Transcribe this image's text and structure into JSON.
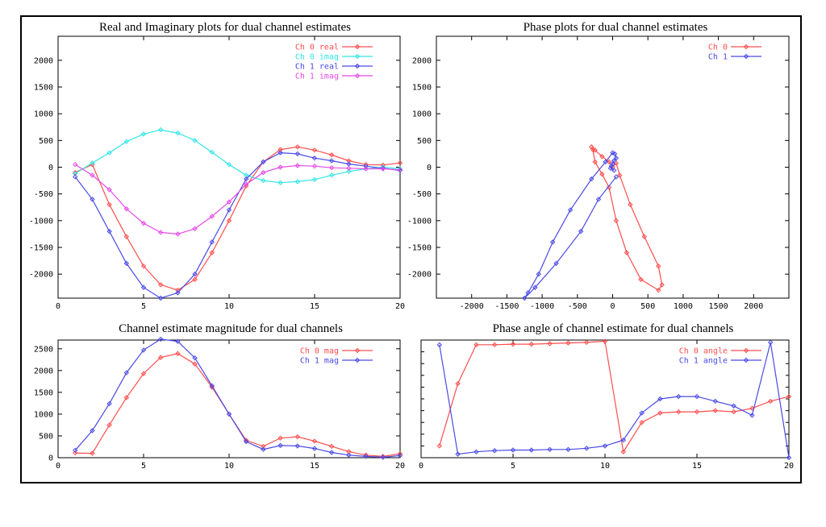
{
  "chart_data": [
    {
      "type": "line",
      "title": "Real and Imaginary plots for dual channel estimates",
      "xlim": [
        0,
        20
      ],
      "ylim": [
        -2450,
        2450
      ],
      "xticks": [
        0,
        5,
        10,
        15,
        20
      ],
      "yticks": [
        -2000,
        -1500,
        -1000,
        -500,
        0,
        500,
        1000,
        1500,
        2000
      ],
      "legend": "top-right",
      "series": [
        {
          "name": "Ch 0 real",
          "color": "#ff4d4d",
          "points": [
            [
              1,
              -100
            ],
            [
              2,
              50
            ],
            [
              3,
              -700
            ],
            [
              4,
              -1300
            ],
            [
              5,
              -1850
            ],
            [
              6,
              -2200
            ],
            [
              7,
              -2300
            ],
            [
              8,
              -2100
            ],
            [
              9,
              -1600
            ],
            [
              10,
              -1000
            ],
            [
              11,
              -350
            ],
            [
              12,
              100
            ],
            [
              13,
              330
            ],
            [
              14,
              380
            ],
            [
              15,
              320
            ],
            [
              16,
              230
            ],
            [
              17,
              120
            ],
            [
              18,
              50
            ],
            [
              19,
              40
            ],
            [
              20,
              80
            ]
          ]
        },
        {
          "name": "Ch 0 imag",
          "color": "#33e6e6",
          "points": [
            [
              1,
              -120
            ],
            [
              2,
              80
            ],
            [
              3,
              270
            ],
            [
              4,
              480
            ],
            [
              5,
              620
            ],
            [
              6,
              700
            ],
            [
              7,
              640
            ],
            [
              8,
              500
            ],
            [
              9,
              280
            ],
            [
              10,
              50
            ],
            [
              11,
              -150
            ],
            [
              12,
              -250
            ],
            [
              13,
              -290
            ],
            [
              14,
              -270
            ],
            [
              15,
              -230
            ],
            [
              16,
              -150
            ],
            [
              17,
              -80
            ],
            [
              18,
              -30
            ],
            [
              19,
              0
            ],
            [
              20,
              -30
            ]
          ]
        },
        {
          "name": "Ch 1 real",
          "color": "#4a4ae6",
          "points": [
            [
              1,
              -180
            ],
            [
              2,
              -600
            ],
            [
              3,
              -1200
            ],
            [
              4,
              -1800
            ],
            [
              5,
              -2250
            ],
            [
              6,
              -2450
            ],
            [
              7,
              -2350
            ],
            [
              8,
              -2000
            ],
            [
              9,
              -1400
            ],
            [
              10,
              -800
            ],
            [
              11,
              -220
            ],
            [
              12,
              100
            ],
            [
              13,
              270
            ],
            [
              14,
              250
            ],
            [
              15,
              170
            ],
            [
              16,
              120
            ],
            [
              17,
              60
            ],
            [
              18,
              20
            ],
            [
              19,
              -20
            ],
            [
              20,
              -60
            ]
          ]
        },
        {
          "name": "Ch 1 imag",
          "color": "#e64ae6",
          "points": [
            [
              1,
              50
            ],
            [
              2,
              -150
            ],
            [
              3,
              -420
            ],
            [
              4,
              -780
            ],
            [
              5,
              -1050
            ],
            [
              6,
              -1220
            ],
            [
              7,
              -1250
            ],
            [
              8,
              -1150
            ],
            [
              9,
              -920
            ],
            [
              10,
              -650
            ],
            [
              11,
              -320
            ],
            [
              12,
              -100
            ],
            [
              13,
              0
            ],
            [
              14,
              30
            ],
            [
              15,
              20
            ],
            [
              16,
              -10
            ],
            [
              17,
              -20
            ],
            [
              18,
              -30
            ],
            [
              19,
              -30
            ],
            [
              20,
              -50
            ]
          ]
        }
      ]
    },
    {
      "type": "line",
      "title": "Phase plots for dual channel estimates",
      "xlim": [
        -2500,
        2500
      ],
      "ylim": [
        -2450,
        2450
      ],
      "xticks": [
        -2000,
        -1500,
        -1000,
        -500,
        0,
        500,
        1000,
        1500,
        2000
      ],
      "yticks": [
        -2000,
        -1500,
        -1000,
        -500,
        0,
        500,
        1000,
        1500,
        2000
      ],
      "legend": "top-right",
      "series": [
        {
          "name": "Ch 0",
          "color": "#ff4d4d",
          "points": [
            [
              -300,
              380
            ],
            [
              -250,
              320
            ],
            [
              -150,
              200
            ],
            [
              -50,
              100
            ],
            [
              0,
              0
            ],
            [
              50,
              80
            ],
            [
              100,
              -150
            ],
            [
              250,
              -700
            ],
            [
              450,
              -1300
            ],
            [
              650,
              -1850
            ],
            [
              700,
              -2200
            ],
            [
              650,
              -2300
            ],
            [
              400,
              -2100
            ],
            [
              200,
              -1600
            ],
            [
              50,
              -1000
            ],
            [
              -50,
              -380
            ],
            [
              -150,
              -130
            ],
            [
              -250,
              100
            ],
            [
              -280,
              330
            ],
            [
              -300,
              380
            ]
          ]
        },
        {
          "name": "Ch 1",
          "color": "#4a4ae6",
          "points": [
            [
              50,
              -180
            ],
            [
              -200,
              -600
            ],
            [
              -450,
              -1200
            ],
            [
              -800,
              -1800
            ],
            [
              -1100,
              -2250
            ],
            [
              -1250,
              -2450
            ],
            [
              -1200,
              -2350
            ],
            [
              -1050,
              -2000
            ],
            [
              -850,
              -1400
            ],
            [
              -600,
              -800
            ],
            [
              -300,
              -220
            ],
            [
              -100,
              100
            ],
            [
              0,
              270
            ],
            [
              30,
              250
            ],
            [
              50,
              170
            ],
            [
              20,
              120
            ],
            [
              0,
              60
            ],
            [
              -20,
              20
            ],
            [
              -30,
              -20
            ],
            [
              20,
              -60
            ]
          ]
        }
      ]
    },
    {
      "type": "line",
      "title": "Channel estimate magnitude for dual channels",
      "xlim": [
        0,
        20
      ],
      "ylim": [
        0,
        2700
      ],
      "xticks": [
        0,
        5,
        10,
        15,
        20
      ],
      "yticks": [
        0,
        500,
        1000,
        1500,
        2000,
        2500
      ],
      "legend": "top-right",
      "series": [
        {
          "name": "Ch 0 mag",
          "color": "#ff4d4d",
          "points": [
            [
              1,
              110
            ],
            [
              2,
              100
            ],
            [
              3,
              750
            ],
            [
              4,
              1380
            ],
            [
              5,
              1930
            ],
            [
              6,
              2300
            ],
            [
              7,
              2390
            ],
            [
              8,
              2150
            ],
            [
              9,
              1620
            ],
            [
              10,
              1000
            ],
            [
              11,
              400
            ],
            [
              12,
              260
            ],
            [
              13,
              450
            ],
            [
              14,
              480
            ],
            [
              15,
              380
            ],
            [
              16,
              260
            ],
            [
              17,
              140
            ],
            [
              18,
              60
            ],
            [
              19,
              30
            ],
            [
              20,
              90
            ]
          ]
        },
        {
          "name": "Ch 1 mag",
          "color": "#4a4ae6",
          "points": [
            [
              1,
              170
            ],
            [
              2,
              620
            ],
            [
              3,
              1240
            ],
            [
              4,
              1950
            ],
            [
              5,
              2470
            ],
            [
              6,
              2720
            ],
            [
              7,
              2670
            ],
            [
              8,
              2290
            ],
            [
              9,
              1650
            ],
            [
              10,
              1000
            ],
            [
              11,
              370
            ],
            [
              12,
              190
            ],
            [
              13,
              280
            ],
            [
              14,
              270
            ],
            [
              15,
              210
            ],
            [
              16,
              120
            ],
            [
              17,
              60
            ],
            [
              18,
              30
            ],
            [
              19,
              10
            ],
            [
              20,
              50
            ]
          ]
        }
      ]
    },
    {
      "type": "line",
      "title": "Phase angle of channel estimate for dual channels",
      "xlim": [
        0,
        20
      ],
      "ylim": [
        0,
        1
      ],
      "xticks": [
        0,
        5,
        10,
        15,
        20
      ],
      "yticks": [],
      "legend": "top-right",
      "series": [
        {
          "name": "Ch 0 angle",
          "color": "#ff4d4d",
          "points": [
            [
              1,
              0.1
            ],
            [
              2,
              0.63
            ],
            [
              3,
              0.96
            ],
            [
              4,
              0.96
            ],
            [
              5,
              0.965
            ],
            [
              6,
              0.965
            ],
            [
              7,
              0.97
            ],
            [
              8,
              0.975
            ],
            [
              9,
              0.98
            ],
            [
              10,
              0.99
            ],
            [
              11,
              0.05
            ],
            [
              12,
              0.3
            ],
            [
              13,
              0.38
            ],
            [
              14,
              0.39
            ],
            [
              15,
              0.39
            ],
            [
              16,
              0.4
            ],
            [
              17,
              0.39
            ],
            [
              18,
              0.42
            ],
            [
              19,
              0.48
            ],
            [
              20,
              0.52
            ]
          ]
        },
        {
          "name": "Ch 1 angle",
          "color": "#4a4ae6",
          "points": [
            [
              1,
              0.96
            ],
            [
              2,
              0.03
            ],
            [
              3,
              0.05
            ],
            [
              4,
              0.06
            ],
            [
              5,
              0.065
            ],
            [
              6,
              0.065
            ],
            [
              7,
              0.07
            ],
            [
              8,
              0.07
            ],
            [
              9,
              0.08
            ],
            [
              10,
              0.1
            ],
            [
              11,
              0.15
            ],
            [
              12,
              0.38
            ],
            [
              13,
              0.5
            ],
            [
              14,
              0.52
            ],
            [
              15,
              0.52
            ],
            [
              16,
              0.48
            ],
            [
              17,
              0.44
            ],
            [
              18,
              0.36
            ],
            [
              19,
              0.98
            ],
            [
              20,
              0.0
            ]
          ]
        }
      ]
    }
  ]
}
